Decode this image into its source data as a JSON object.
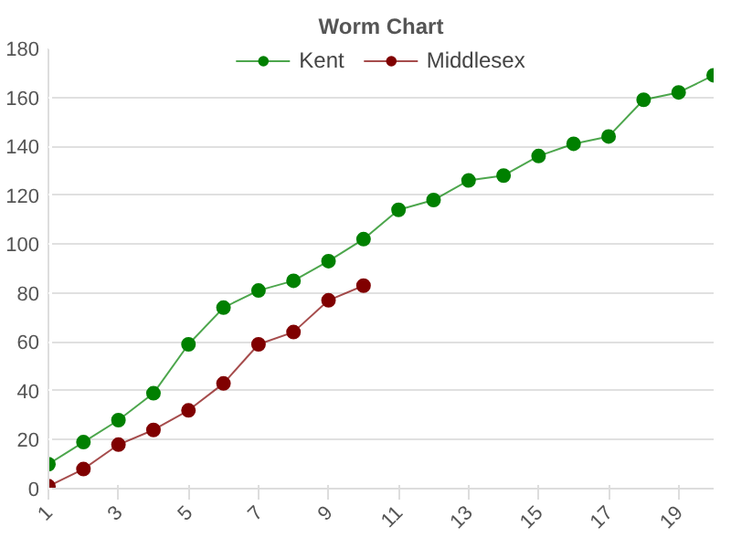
{
  "chart_data": {
    "type": "line",
    "title": "Worm Chart",
    "x": [
      1,
      2,
      3,
      4,
      5,
      6,
      7,
      8,
      9,
      10,
      11,
      12,
      13,
      14,
      15,
      16,
      17,
      18,
      19,
      20
    ],
    "series": [
      {
        "name": "Kent",
        "color": "#008000",
        "values": [
          10,
          19,
          28,
          39,
          59,
          74,
          81,
          85,
          93,
          102,
          114,
          118,
          126,
          128,
          136,
          141,
          144,
          159,
          162,
          169
        ]
      },
      {
        "name": "Middlesex",
        "color": "#800000",
        "values": [
          1,
          8,
          18,
          24,
          32,
          43,
          59,
          64,
          77,
          83,
          null,
          null,
          null,
          null,
          null,
          null,
          null,
          null,
          null,
          null
        ]
      }
    ],
    "xlim": [
      1,
      20
    ],
    "xticks": [
      1,
      3,
      5,
      7,
      9,
      11,
      13,
      15,
      17,
      19
    ],
    "ylim": [
      0,
      180
    ],
    "yticks": [
      0,
      20,
      40,
      60,
      80,
      100,
      120,
      140,
      160,
      180
    ],
    "grid": "y",
    "legend": "top",
    "marker": "circle",
    "line_style": "solid"
  }
}
